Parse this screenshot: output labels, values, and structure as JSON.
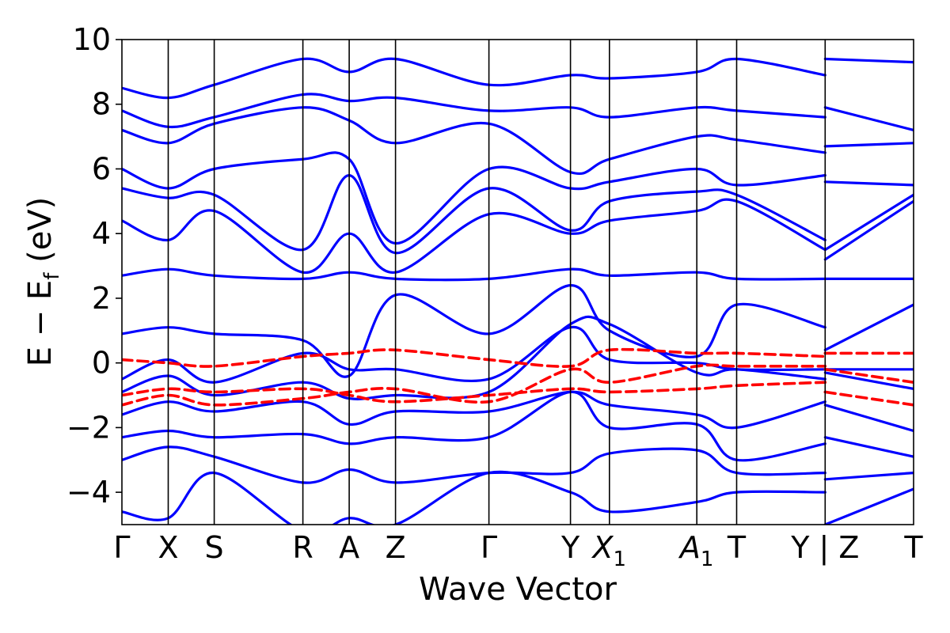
{
  "chart_data": {
    "type": "line",
    "xlabel": "Wave Vector",
    "ylabel_main": "E − E",
    "ylabel_sub": "f",
    "ylabel_unit": " (eV)",
    "ylim": [
      -5,
      10
    ],
    "yticks": [
      {
        "value": -4,
        "label": "−4"
      },
      {
        "value": -2,
        "label": "−2"
      },
      {
        "value": 0,
        "label": "0"
      },
      {
        "value": 2,
        "label": "2"
      },
      {
        "value": 4,
        "label": "4"
      },
      {
        "value": 6,
        "label": "6"
      },
      {
        "value": 8,
        "label": "8"
      },
      {
        "value": 10,
        "label": "10"
      }
    ],
    "kpoints": [
      {
        "label": "Γ",
        "sub": "",
        "x": 0.0
      },
      {
        "label": "X",
        "sub": "",
        "x": 0.0585
      },
      {
        "label": "S",
        "sub": "",
        "x": 0.1166
      },
      {
        "label": "R",
        "sub": "",
        "x": 0.2286
      },
      {
        "label": "A",
        "sub": "",
        "x": 0.2871
      },
      {
        "label": "Z",
        "sub": "",
        "x": 0.3456
      },
      {
        "label": "Γ",
        "sub": "",
        "x": 0.4636
      },
      {
        "label": "Y",
        "sub": "",
        "x": 0.5666
      },
      {
        "label": "X",
        "sub": "1",
        "x": 0.6158
      },
      {
        "label": "A",
        "sub": "1",
        "x": 0.7262
      },
      {
        "label": "T",
        "sub": "",
        "x": 0.7765
      },
      {
        "label": "Y | Z",
        "sub": "",
        "x": 0.8883
      },
      {
        "label": "T",
        "sub": "",
        "x": 1.0
      }
    ],
    "path_break_x": 0.8883,
    "series": [
      {
        "style": "solid",
        "color": "#0000ff",
        "bands": [
          [
            [
              0,
              -4.6
            ],
            [
              0.0585,
              -4.8
            ],
            [
              0.1166,
              -3.4
            ],
            [
              0.2286,
              -5.2
            ],
            [
              0.2871,
              -4.8
            ],
            [
              0.3456,
              -5.0
            ],
            [
              0.4636,
              -3.4
            ],
            [
              0.5666,
              -4.0
            ],
            [
              0.6158,
              -4.6
            ],
            [
              0.7262,
              -4.3
            ],
            [
              0.7765,
              -4.0
            ],
            [
              0.8883,
              -4.0
            ],
            [
              0.8883,
              -5.0
            ],
            [
              1.0,
              -3.9
            ]
          ],
          [
            [
              0,
              -3.0
            ],
            [
              0.0585,
              -2.6
            ],
            [
              0.1166,
              -2.9
            ],
            [
              0.2286,
              -3.7
            ],
            [
              0.2871,
              -3.3
            ],
            [
              0.3456,
              -3.7
            ],
            [
              0.4636,
              -3.4
            ],
            [
              0.5666,
              -3.4
            ],
            [
              0.6158,
              -2.8
            ],
            [
              0.7262,
              -2.7
            ],
            [
              0.7765,
              -3.4
            ],
            [
              0.8883,
              -3.4
            ],
            [
              0.8883,
              -3.6
            ],
            [
              1.0,
              -3.4
            ]
          ],
          [
            [
              0,
              -2.3
            ],
            [
              0.0585,
              -2.1
            ],
            [
              0.1166,
              -2.3
            ],
            [
              0.2286,
              -2.2
            ],
            [
              0.2871,
              -2.5
            ],
            [
              0.3456,
              -2.3
            ],
            [
              0.4636,
              -2.3
            ],
            [
              0.5666,
              -0.9
            ],
            [
              0.6158,
              -2.0
            ],
            [
              0.7262,
              -1.9
            ],
            [
              0.7765,
              -3.0
            ],
            [
              0.8883,
              -2.5
            ],
            [
              0.8883,
              -2.3
            ],
            [
              1.0,
              -2.9
            ]
          ],
          [
            [
              0,
              -1.6
            ],
            [
              0.0585,
              -1.2
            ],
            [
              0.1166,
              -1.5
            ],
            [
              0.2286,
              -1.2
            ],
            [
              0.2871,
              -1.9
            ],
            [
              0.3456,
              -1.5
            ],
            [
              0.4636,
              -1.5
            ],
            [
              0.5666,
              -0.9
            ],
            [
              0.6158,
              -1.3
            ],
            [
              0.7262,
              -1.6
            ],
            [
              0.7765,
              -2.0
            ],
            [
              0.8883,
              -1.2
            ],
            [
              0.8883,
              -1.3
            ],
            [
              1.0,
              -2.1
            ]
          ],
          [
            [
              0,
              -0.9
            ],
            [
              0.0585,
              -0.4
            ],
            [
              0.1166,
              -1.0
            ],
            [
              0.2286,
              -0.6
            ],
            [
              0.2871,
              -1.1
            ],
            [
              0.3456,
              -1.0
            ],
            [
              0.4636,
              -0.9
            ],
            [
              0.5666,
              1.2
            ],
            [
              0.6158,
              1.2
            ],
            [
              0.7262,
              -0.3
            ],
            [
              0.7765,
              -0.2
            ],
            [
              0.8883,
              -0.5
            ],
            [
              0.8883,
              -0.3
            ],
            [
              1.0,
              -0.8
            ]
          ],
          [
            [
              0,
              -0.5
            ],
            [
              0.0585,
              0.1
            ],
            [
              0.1166,
              -0.6
            ],
            [
              0.2286,
              0.3
            ],
            [
              0.2871,
              -0.2
            ],
            [
              0.3456,
              -0.2
            ],
            [
              0.4636,
              -0.5
            ],
            [
              0.5666,
              1.1
            ],
            [
              0.6158,
              0.1
            ],
            [
              0.7262,
              0.0
            ],
            [
              0.7765,
              -0.2
            ],
            [
              0.8883,
              -0.2
            ],
            [
              0.8883,
              -0.2
            ],
            [
              1.0,
              -0.2
            ]
          ],
          [
            [
              0,
              0.9
            ],
            [
              0.0585,
              1.1
            ],
            [
              0.1166,
              0.9
            ],
            [
              0.2286,
              0.7
            ],
            [
              0.2871,
              -0.4
            ],
            [
              0.3456,
              2.1
            ],
            [
              0.4636,
              0.9
            ],
            [
              0.5666,
              2.4
            ],
            [
              0.6158,
              1.0
            ],
            [
              0.7262,
              0.2
            ],
            [
              0.7765,
              1.8
            ],
            [
              0.8883,
              1.1
            ],
            [
              0.8883,
              0.4
            ],
            [
              1.0,
              1.8
            ]
          ],
          [
            [
              0,
              2.7
            ],
            [
              0.0585,
              2.9
            ],
            [
              0.1166,
              2.7
            ],
            [
              0.2286,
              2.6
            ],
            [
              0.2871,
              2.8
            ],
            [
              0.3456,
              2.6
            ],
            [
              0.4636,
              2.6
            ],
            [
              0.5666,
              2.9
            ],
            [
              0.6158,
              2.7
            ],
            [
              0.7262,
              2.8
            ],
            [
              0.7765,
              2.6
            ],
            [
              0.8883,
              2.6
            ],
            [
              0.8883,
              2.6
            ],
            [
              1.0,
              2.6
            ]
          ],
          [
            [
              0,
              4.4
            ],
            [
              0.0585,
              3.8
            ],
            [
              0.1166,
              4.7
            ],
            [
              0.2286,
              2.8
            ],
            [
              0.2871,
              4.0
            ],
            [
              0.3456,
              2.8
            ],
            [
              0.4636,
              4.6
            ],
            [
              0.5666,
              4.0
            ],
            [
              0.6158,
              4.4
            ],
            [
              0.7262,
              4.7
            ],
            [
              0.7765,
              5.0
            ],
            [
              0.8883,
              3.5
            ],
            [
              0.8883,
              3.2
            ],
            [
              1.0,
              5.0
            ]
          ],
          [
            [
              0,
              5.4
            ],
            [
              0.0585,
              5.1
            ],
            [
              0.1166,
              5.2
            ],
            [
              0.2286,
              3.5
            ],
            [
              0.2871,
              5.8
            ],
            [
              0.3456,
              3.4
            ],
            [
              0.4636,
              5.4
            ],
            [
              0.5666,
              4.1
            ],
            [
              0.6158,
              5.0
            ],
            [
              0.7262,
              5.3
            ],
            [
              0.7765,
              5.2
            ],
            [
              0.8883,
              3.8
            ],
            [
              0.8883,
              3.5
            ],
            [
              1.0,
              5.2
            ]
          ],
          [
            [
              0,
              6.0
            ],
            [
              0.0585,
              5.4
            ],
            [
              0.1166,
              6.0
            ],
            [
              0.2286,
              6.3
            ],
            [
              0.2871,
              6.3
            ],
            [
              0.3456,
              3.7
            ],
            [
              0.4636,
              6.0
            ],
            [
              0.5666,
              5.4
            ],
            [
              0.6158,
              5.6
            ],
            [
              0.7262,
              6.0
            ],
            [
              0.7765,
              5.5
            ],
            [
              0.8883,
              5.8
            ],
            [
              0.8883,
              5.6
            ],
            [
              1.0,
              5.5
            ]
          ],
          [
            [
              0,
              7.2
            ],
            [
              0.0585,
              6.8
            ],
            [
              0.1166,
              7.4
            ],
            [
              0.2286,
              7.9
            ],
            [
              0.2871,
              7.5
            ],
            [
              0.3456,
              6.8
            ],
            [
              0.4636,
              7.4
            ],
            [
              0.5666,
              5.9
            ],
            [
              0.6158,
              6.3
            ],
            [
              0.7262,
              7.0
            ],
            [
              0.7765,
              6.9
            ],
            [
              0.8883,
              6.5
            ],
            [
              0.8883,
              6.7
            ],
            [
              1.0,
              6.8
            ]
          ],
          [
            [
              0,
              7.8
            ],
            [
              0.0585,
              7.3
            ],
            [
              0.1166,
              7.6
            ],
            [
              0.2286,
              8.3
            ],
            [
              0.2871,
              8.1
            ],
            [
              0.3456,
              8.2
            ],
            [
              0.4636,
              7.8
            ],
            [
              0.5666,
              7.9
            ],
            [
              0.6158,
              7.6
            ],
            [
              0.7262,
              7.9
            ],
            [
              0.7765,
              7.8
            ],
            [
              0.8883,
              7.6
            ],
            [
              0.8883,
              7.9
            ],
            [
              1.0,
              7.2
            ]
          ],
          [
            [
              0,
              8.5
            ],
            [
              0.0585,
              8.2
            ],
            [
              0.1166,
              8.6
            ],
            [
              0.2286,
              9.4
            ],
            [
              0.2871,
              9.0
            ],
            [
              0.3456,
              9.4
            ],
            [
              0.4636,
              8.6
            ],
            [
              0.5666,
              8.9
            ],
            [
              0.6158,
              8.8
            ],
            [
              0.7262,
              9.0
            ],
            [
              0.7765,
              9.4
            ],
            [
              0.8883,
              8.9
            ],
            [
              0.8883,
              9.4
            ],
            [
              1.0,
              9.3
            ]
          ]
        ]
      },
      {
        "style": "dashed",
        "color": "#ff0000",
        "bands": [
          [
            [
              0,
              0.1
            ],
            [
              0.0585,
              0.0
            ],
            [
              0.1166,
              -0.1
            ],
            [
              0.2286,
              0.2
            ],
            [
              0.2871,
              0.3
            ],
            [
              0.3456,
              0.4
            ],
            [
              0.4636,
              0.1
            ],
            [
              0.5666,
              -0.1
            ],
            [
              0.6158,
              0.4
            ],
            [
              0.7262,
              0.3
            ],
            [
              0.7765,
              0.3
            ],
            [
              0.8883,
              0.2
            ],
            [
              0.8883,
              0.3
            ],
            [
              1.0,
              0.3
            ]
          ],
          [
            [
              0,
              -1.3
            ],
            [
              0.0585,
              -1.0
            ],
            [
              0.1166,
              -1.3
            ],
            [
              0.2286,
              -1.1
            ],
            [
              0.2871,
              -0.9
            ],
            [
              0.3456,
              -0.8
            ],
            [
              0.4636,
              -1.2
            ],
            [
              0.5666,
              -0.2
            ],
            [
              0.6158,
              -0.6
            ],
            [
              0.7262,
              -0.1
            ],
            [
              0.7765,
              -0.1
            ],
            [
              0.8883,
              -0.1
            ],
            [
              0.8883,
              -0.2
            ],
            [
              1.0,
              -0.6
            ]
          ],
          [
            [
              0,
              -1.0
            ],
            [
              0.0585,
              -0.8
            ],
            [
              0.1166,
              -0.9
            ],
            [
              0.2286,
              -0.8
            ],
            [
              0.2871,
              -1.0
            ],
            [
              0.3456,
              -1.2
            ],
            [
              0.4636,
              -1.0
            ],
            [
              0.5666,
              -0.8
            ],
            [
              0.6158,
              -0.9
            ],
            [
              0.7262,
              -0.8
            ],
            [
              0.7765,
              -0.7
            ],
            [
              0.8883,
              -0.6
            ],
            [
              0.8883,
              -0.9
            ],
            [
              1.0,
              -1.3
            ]
          ]
        ]
      }
    ]
  }
}
